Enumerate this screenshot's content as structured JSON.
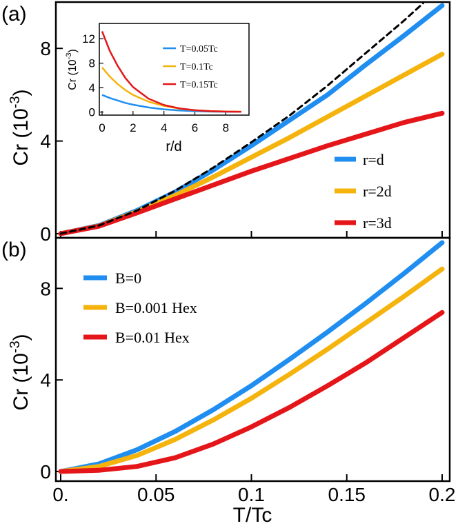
{
  "chart_data": [
    {
      "panel": "a",
      "panel_label": "(a)",
      "type": "line",
      "xlabel": "",
      "ylabel_main": "Cr (10",
      "ylabel_exp": "-3",
      "ylabel_close": ")",
      "xlim": [
        0,
        0.2
      ],
      "ylim": [
        0,
        10
      ],
      "yticks": [
        0,
        4,
        8
      ],
      "ytick_labels": [
        "0",
        "4",
        "8"
      ],
      "legend": "bottom-right",
      "series": [
        {
          "name": "r=d",
          "color": "#1f8ef0",
          "style": "solid",
          "x": [
            0,
            0.02,
            0.04,
            0.06,
            0.08,
            0.1,
            0.12,
            0.14,
            0.16,
            0.18,
            0.2
          ],
          "y": [
            0,
            0.35,
            1.0,
            1.8,
            2.75,
            3.8,
            4.9,
            6.0,
            7.3,
            8.55,
            9.85
          ]
        },
        {
          "name": "r=2d",
          "color": "#f5b30d",
          "style": "solid",
          "x": [
            0,
            0.02,
            0.04,
            0.06,
            0.08,
            0.1,
            0.12,
            0.14,
            0.16,
            0.18,
            0.2
          ],
          "y": [
            0,
            0.33,
            0.95,
            1.65,
            2.45,
            3.3,
            4.15,
            5.05,
            5.95,
            6.85,
            7.75
          ]
        },
        {
          "name": "r=3d",
          "color": "#e4161a",
          "style": "solid",
          "x": [
            0,
            0.02,
            0.04,
            0.06,
            0.08,
            0.1,
            0.12,
            0.14,
            0.16,
            0.18,
            0.2
          ],
          "y": [
            0,
            0.32,
            0.9,
            1.5,
            2.1,
            2.7,
            3.25,
            3.8,
            4.3,
            4.8,
            5.2
          ]
        },
        {
          "name": "",
          "color": "#000000",
          "style": "dashed",
          "x": [
            0,
            0.02,
            0.04,
            0.06,
            0.08,
            0.1,
            0.12,
            0.14,
            0.16,
            0.18,
            0.19
          ],
          "y": [
            0,
            0.35,
            1.0,
            1.85,
            2.85,
            3.95,
            5.1,
            6.4,
            7.8,
            9.2,
            9.95
          ]
        }
      ],
      "inset": {
        "type": "line",
        "xlabel": "r/d",
        "ylabel_main": "Cr (10",
        "ylabel_exp": "-3",
        "ylabel_close": ")",
        "xlim": [
          0,
          9.5
        ],
        "ylim": [
          -0.5,
          14.5
        ],
        "xticks": [
          0,
          2,
          4,
          6,
          8
        ],
        "xtick_labels": [
          "0",
          "2",
          "4",
          "6",
          "8"
        ],
        "yticks": [
          0,
          4,
          8,
          12
        ],
        "ytick_labels": [
          "0",
          "4",
          "8",
          "12"
        ],
        "legend": "top-right",
        "series": [
          {
            "name": "T=0.05Tc",
            "color": "#1f8ef0",
            "x": [
              0,
              0.5,
              1,
              1.5,
              2,
              3,
              4,
              5,
              6,
              7,
              8,
              9
            ],
            "y": [
              2.8,
              2.3,
              1.9,
              1.5,
              1.2,
              0.75,
              0.45,
              0.25,
              0.15,
              0.08,
              0.05,
              0.03
            ]
          },
          {
            "name": "T=0.1Tc",
            "color": "#f5b30d",
            "x": [
              0,
              0.5,
              1,
              1.5,
              2,
              3,
              4,
              5,
              6,
              7,
              8,
              9
            ],
            "y": [
              7.3,
              5.8,
              4.6,
              3.6,
              2.8,
              1.7,
              1.0,
              0.55,
              0.3,
              0.17,
              0.1,
              0.06
            ]
          },
          {
            "name": "T=0.15Tc",
            "color": "#e4161a",
            "x": [
              0,
              0.5,
              1,
              1.5,
              2,
              3,
              4,
              5,
              6,
              7,
              8,
              9
            ],
            "y": [
              13.2,
              10.0,
              7.6,
              5.6,
              4.1,
              2.2,
              1.15,
              0.6,
              0.3,
              0.15,
              0.08,
              0.05
            ]
          }
        ]
      }
    },
    {
      "panel": "b",
      "panel_label": "(b)",
      "type": "line",
      "xlabel": "T/Tc",
      "ylabel_main": "Cr (10",
      "ylabel_exp": "-3",
      "ylabel_close": ")",
      "xlim": [
        0,
        0.2
      ],
      "ylim": [
        0,
        10
      ],
      "xticks": [
        0,
        0.05,
        0.1,
        0.15,
        0.2
      ],
      "xtick_labels": [
        "0.",
        "0.05",
        "0.1",
        "0.15",
        "0.2"
      ],
      "yticks": [
        0,
        4,
        8
      ],
      "ytick_labels": [
        "0",
        "4",
        "8"
      ],
      "legend": "top-left",
      "series": [
        {
          "name": "B=0",
          "color": "#1f8ef0",
          "x": [
            0,
            0.02,
            0.04,
            0.06,
            0.08,
            0.1,
            0.12,
            0.14,
            0.16,
            0.18,
            0.2
          ],
          "y": [
            0,
            0.33,
            0.95,
            1.75,
            2.7,
            3.75,
            4.9,
            6.1,
            7.35,
            8.65,
            10.0
          ]
        },
        {
          "name": "B=0.001 Hex",
          "color": "#f5b30d",
          "x": [
            0,
            0.02,
            0.04,
            0.06,
            0.08,
            0.1,
            0.12,
            0.14,
            0.16,
            0.18,
            0.2
          ],
          "y": [
            0,
            0.22,
            0.7,
            1.4,
            2.25,
            3.2,
            4.25,
            5.35,
            6.5,
            7.65,
            8.85
          ]
        },
        {
          "name": "B=0.01 Hex",
          "color": "#e4161a",
          "x": [
            0,
            0.02,
            0.04,
            0.06,
            0.08,
            0.1,
            0.12,
            0.14,
            0.16,
            0.18,
            0.2
          ],
          "y": [
            0,
            0.05,
            0.22,
            0.6,
            1.2,
            1.95,
            2.8,
            3.75,
            4.75,
            5.85,
            6.95
          ]
        }
      ]
    }
  ]
}
